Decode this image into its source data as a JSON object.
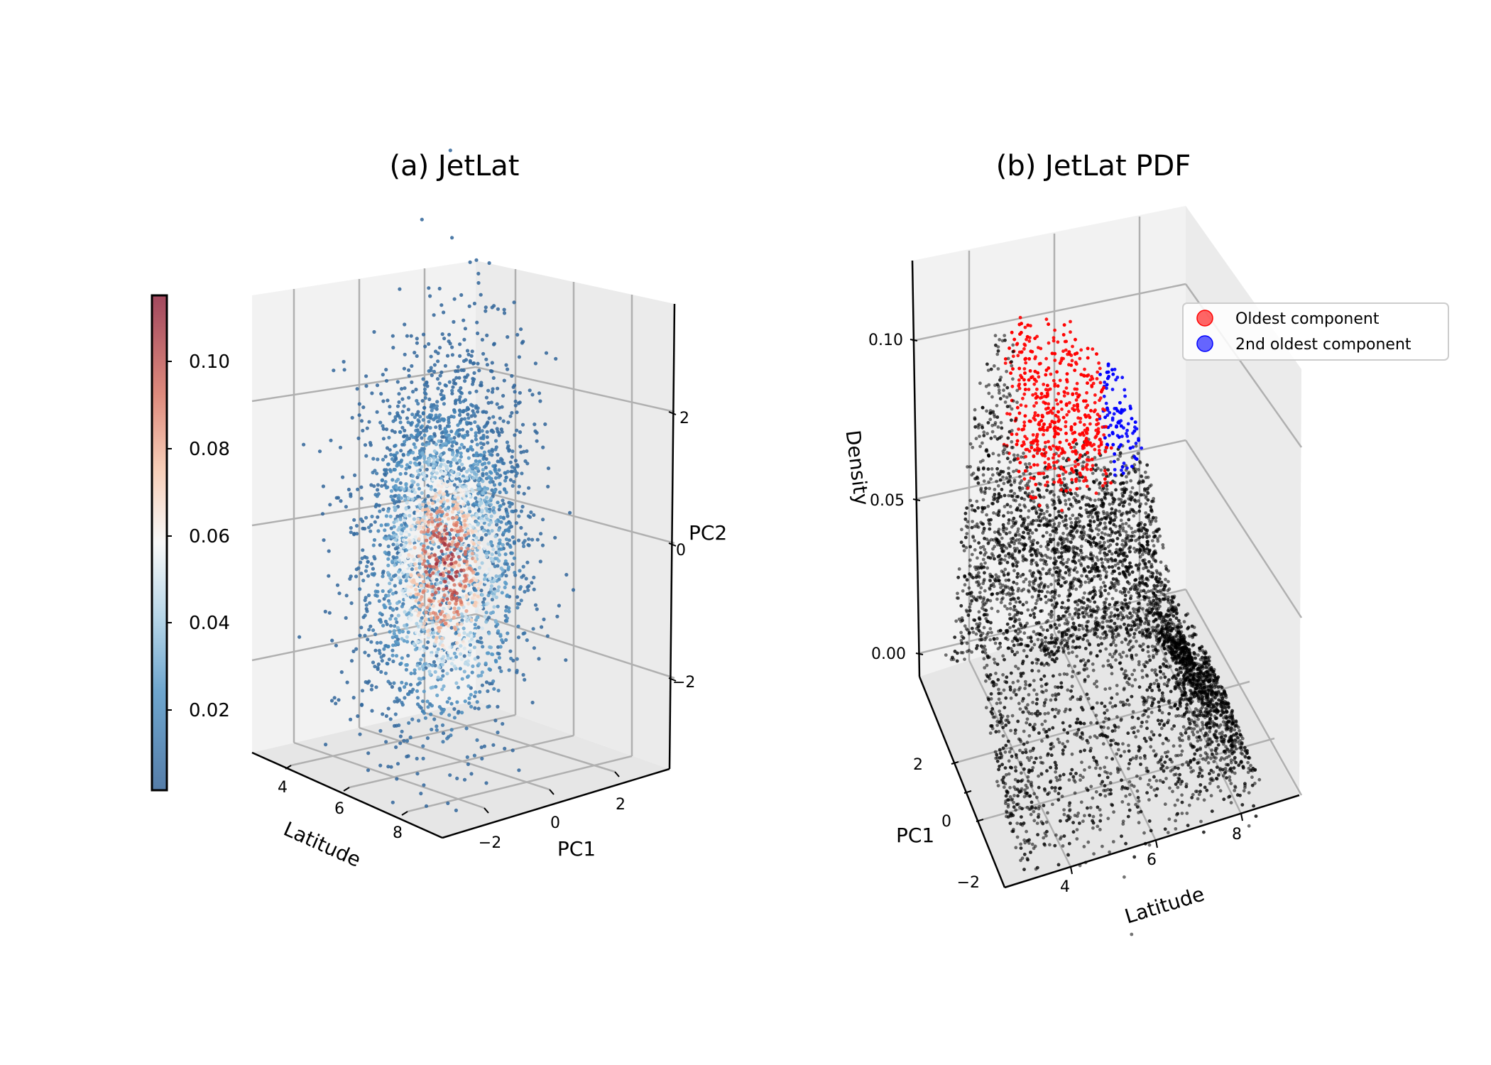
{
  "figure": {
    "background": "#ffffff"
  },
  "chart_data": [
    {
      "id": "a",
      "type": "scatter",
      "projection": "3d",
      "title": "(a) JetLat",
      "xlabel": "Latitude",
      "ylabel": "PC1",
      "zlabel": "PC2",
      "x_ticks": [
        "4",
        "6",
        "8"
      ],
      "y_ticks": [
        "−2",
        "0",
        "2"
      ],
      "z_ticks": [
        "−2",
        "0",
        "2"
      ],
      "xlim": [
        3,
        9
      ],
      "ylim": [
        -3,
        3
      ],
      "zlim": [
        -3,
        3
      ],
      "grid": true,
      "colormap": "RdBu_r",
      "colorbar": {
        "ticks": [
          "0.02",
          "0.04",
          "0.06",
          "0.08",
          "0.10"
        ],
        "range": [
          0.0,
          0.115
        ]
      },
      "approx_points": 3000,
      "cluster": {
        "latitude_mean": 5.5,
        "pc1_mean": 0,
        "pc2_mean": 0,
        "pc2_spread": 1.2
      }
    },
    {
      "id": "b",
      "type": "scatter",
      "projection": "3d",
      "title": "(b) JetLat PDF",
      "xlabel": "Latitude",
      "ylabel": "PC1",
      "zlabel": "Density",
      "x_ticks": [
        "4",
        "6",
        "8"
      ],
      "y_ticks": [
        "−2",
        "0",
        "2"
      ],
      "z_ticks": [
        "0.00",
        "0.05",
        "0.10"
      ],
      "xlim": [
        3,
        9
      ],
      "ylim": [
        -3,
        3
      ],
      "zlim": [
        0,
        0.12
      ],
      "grid": true,
      "legend_position": "upper-right",
      "series": [
        {
          "name": "Oldest component",
          "color": "#ff0000",
          "peak_density": 0.095,
          "threshold_density": 0.065
        },
        {
          "name": "2nd oldest component",
          "color": "#0000ff",
          "peak_density": 0.069,
          "threshold_density": 0.064
        }
      ],
      "base_color": "#000000",
      "approx_points": 7000
    }
  ]
}
